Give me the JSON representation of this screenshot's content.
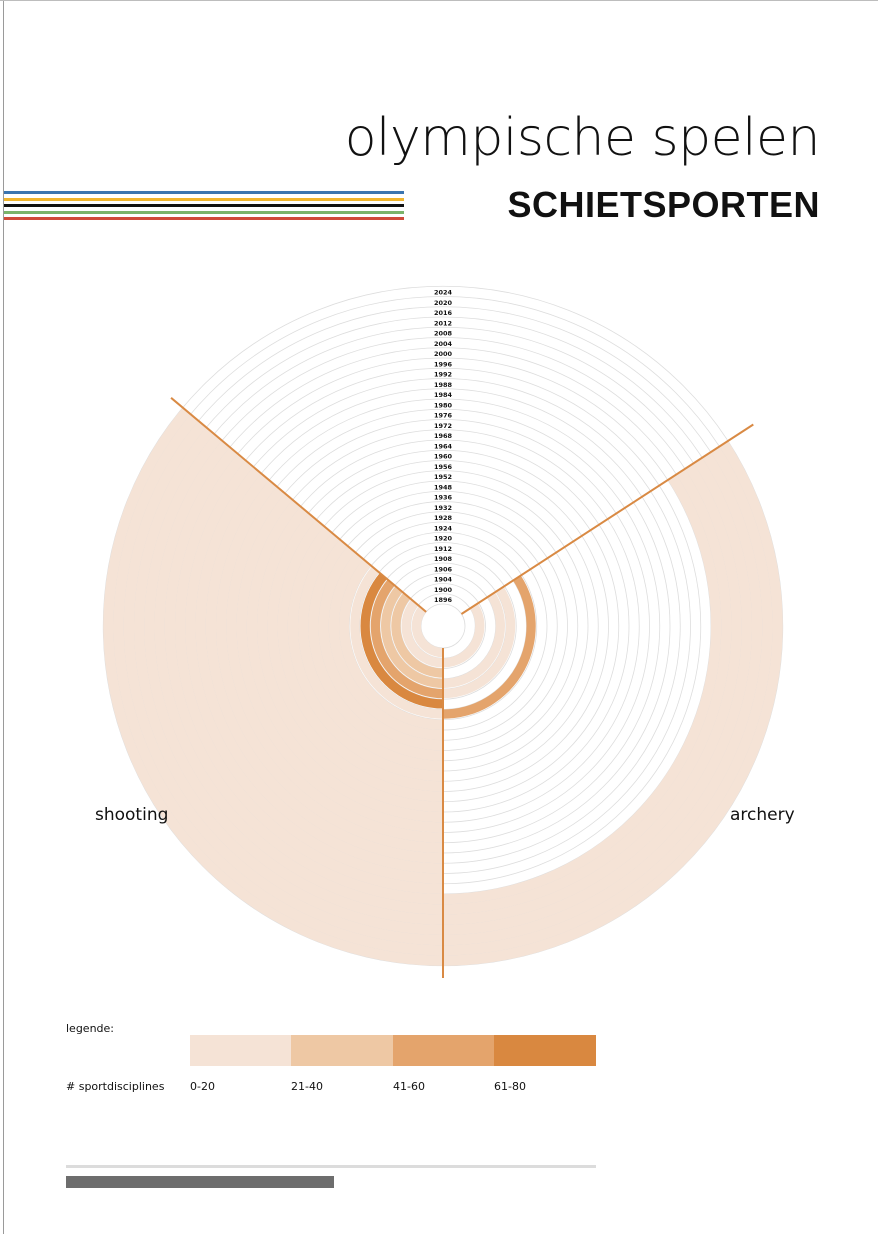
{
  "header": {
    "title": "olympische spelen",
    "subtitle": "SCHIETSPORTEN"
  },
  "colors": {
    "stripes": [
      "#3b75b0",
      "#f0b52e",
      "#111111",
      "#7bb46b",
      "#d04a3a"
    ],
    "accent_line": "#d98a44",
    "grid": "#dddddd",
    "scale": [
      "#f5e3d6",
      "#eec8a4",
      "#e4a46c",
      "#d98840"
    ]
  },
  "chart_data": {
    "type": "radial-bar",
    "title": "SCHIETSPORTEN",
    "years": [
      "1896",
      "1900",
      "1904",
      "1906",
      "1908",
      "1912",
      "1920",
      "1924",
      "1928",
      "1932",
      "1936",
      "1948",
      "1952",
      "1956",
      "1960",
      "1964",
      "1968",
      "1972",
      "1976",
      "1980",
      "1984",
      "1988",
      "1992",
      "1996",
      "2000",
      "2004",
      "2008",
      "2012",
      "2016",
      "2020",
      "2024"
    ],
    "series": [
      {
        "name": "shooting",
        "category": [
          1,
          0,
          1,
          0,
          1,
          1,
          0,
          0,
          0,
          0,
          0,
          0,
          0,
          0,
          0,
          0,
          0,
          0,
          0,
          0,
          0,
          0,
          0,
          0,
          0,
          0,
          0,
          0,
          0,
          0,
          0
        ]
      },
      {
        "name": "archery",
        "category": [
          0,
          0,
          0,
          0,
          0,
          0,
          0,
          0,
          0,
          0,
          0,
          0,
          0,
          0,
          0,
          0,
          0,
          0,
          0,
          0,
          0,
          0,
          0,
          0,
          0,
          0,
          0,
          0,
          0,
          0,
          0
        ]
      }
    ],
    "legend": {
      "title": "legende:",
      "metric": "# sportdisciplines",
      "ranges": [
        "0-20",
        "21-40",
        "41-60",
        "61-80"
      ]
    },
    "axis_labels": {
      "left": "shooting",
      "right": "archery"
    }
  }
}
